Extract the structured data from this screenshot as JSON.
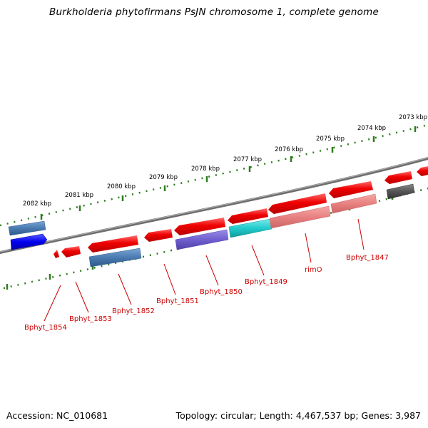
{
  "title": "Burkholderia phytofirmans PsJN chromosome 1, complete genome",
  "accession": "Accession: NC_010681",
  "stats": "Topology: circular; Length: 4,467,537 bp; Genes: 3,987",
  "colors": {
    "backbone": "#7a7a7a",
    "tick": "#2e7d1e",
    "label": "#cc0000",
    "gene_red": "#ee0000",
    "gene_pink": "#ee8888",
    "gene_steelblue": "#4a7ab0",
    "gene_blue": "#0000ee",
    "gene_purple": "#6f5fcf",
    "gene_cyan": "#22cccc",
    "gene_gray": "#555555"
  },
  "kbp_labels": [
    "2082 kbp",
    "2081 kbp",
    "2080 kbp",
    "2079 kbp",
    "2078 kbp",
    "2077 kbp",
    "2076 kbp",
    "2075 kbp",
    "2074 kbp",
    "2073 kbp"
  ],
  "gene_labels": [
    "Bphyt_1854",
    "Bphyt_1853",
    "Bphyt_1852",
    "Bphyt_1851",
    "Bphyt_1850",
    "Bphyt_1849",
    "rimO",
    "Bphyt_1847"
  ]
}
